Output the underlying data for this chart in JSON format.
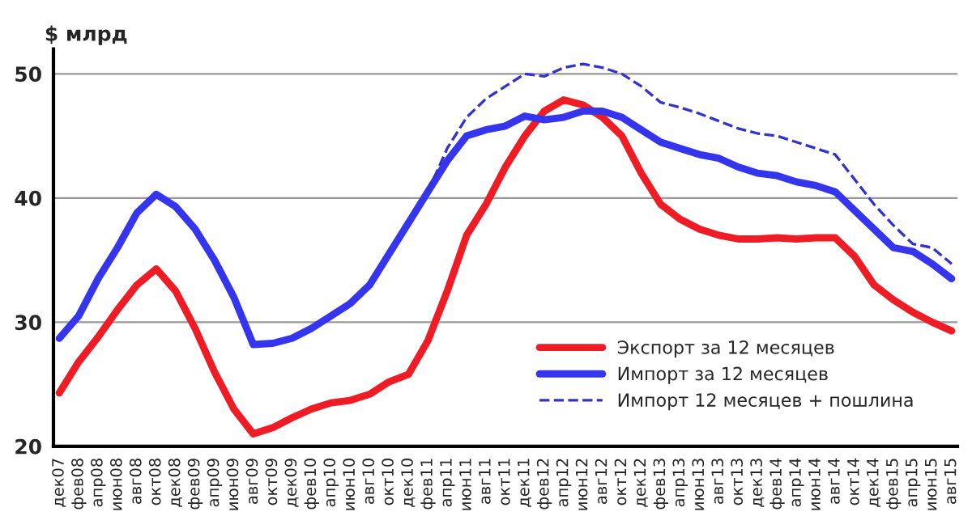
{
  "chart_data": {
    "type": "line",
    "ylabel": "$ млрд",
    "categories": [
      "дек07",
      "фев08",
      "апр08",
      "июн08",
      "авг08",
      "окт08",
      "дек08",
      "фев09",
      "апр09",
      "июн09",
      "авг09",
      "окт09",
      "дек09",
      "фев10",
      "апр10",
      "июн10",
      "авг10",
      "окт10",
      "дек10",
      "фев11",
      "апр11",
      "июн11",
      "авг11",
      "окт11",
      "дек11",
      "фев12",
      "апр12",
      "июн12",
      "авг12",
      "окт12",
      "дек12",
      "фев13",
      "апр13",
      "июн13",
      "авг13",
      "окт13",
      "дек13",
      "фев14",
      "апр14",
      "июн14",
      "авг14",
      "окт14",
      "дек14",
      "фев15",
      "апр15",
      "июн15",
      "авг15"
    ],
    "series": [
      {
        "name": "Экспорт за 12 месяцев",
        "color": "#ee1c25",
        "line_style": "solid",
        "values": [
          24.3,
          26.8,
          28.8,
          31,
          33,
          34.3,
          32.5,
          29.5,
          26,
          23,
          21,
          21.5,
          22.3,
          23,
          23.5,
          23.7,
          24.2,
          25.2,
          25.8,
          28.5,
          32.5,
          37,
          39.5,
          42.5,
          45,
          47,
          47.9,
          47.5,
          46.5,
          45,
          42,
          39.5,
          38.3,
          37.5,
          37,
          36.7,
          36.7,
          36.8,
          36.7,
          36.8,
          36.8,
          35.3,
          33,
          31.8,
          30.8,
          30,
          29.3
        ]
      },
      {
        "name": "Импорт за 12 месяцев",
        "color": "#3535ee",
        "line_style": "solid",
        "values": [
          28.7,
          30.5,
          33.5,
          36,
          38.8,
          40.3,
          39.3,
          37.5,
          35,
          32,
          28.2,
          28.3,
          28.7,
          29.5,
          30.5,
          31.5,
          33,
          35.5,
          38,
          40.5,
          43,
          45,
          45.5,
          45.8,
          46.6,
          46.3,
          46.5,
          47,
          47,
          46.5,
          45.5,
          44.5,
          44,
          43.5,
          43.2,
          42.5,
          42,
          41.8,
          41.3,
          41,
          40.5,
          39,
          37.5,
          36,
          35.7,
          34.7,
          33.5
        ]
      },
      {
        "name": "Импорт 12 месяцев + пошлина",
        "color": "#3333cc",
        "line_style": "dashed",
        "values": [
          null,
          null,
          null,
          null,
          null,
          null,
          null,
          null,
          null,
          null,
          null,
          null,
          null,
          null,
          null,
          null,
          null,
          null,
          null,
          40.5,
          44,
          46.5,
          48,
          49,
          50,
          49.8,
          50.5,
          50.8,
          50.5,
          50,
          49,
          47.7,
          47.3,
          46.8,
          46.2,
          45.6,
          45.2,
          45,
          44.5,
          44,
          43.5,
          41.5,
          39.5,
          37.8,
          36.3,
          36,
          34.7
        ]
      }
    ],
    "ylim": [
      20,
      52
    ],
    "yticks": [
      20,
      30,
      40,
      50
    ],
    "grid": "y",
    "legend": "bottom right"
  }
}
